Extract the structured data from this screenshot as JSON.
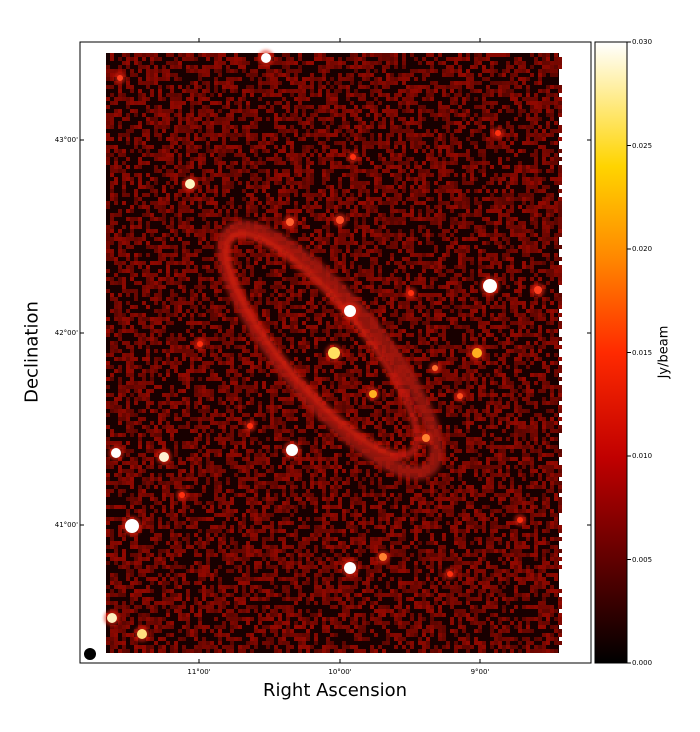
{
  "figure": {
    "xlabel": "Right Ascension",
    "ylabel": "Declination",
    "colorbar_label": "Jy/beam",
    "colormap": "hot",
    "x_ticks": [
      "11°00'",
      "10°00'",
      "9°00'"
    ],
    "y_ticks": [
      "43°00'",
      "42°00'",
      "41°00'"
    ],
    "colorbar_ticks": [
      "0.030",
      "0.025",
      "0.020",
      "0.015",
      "0.010",
      "0.005",
      "0.000"
    ],
    "colorbar_range": [
      0.0,
      0.03
    ],
    "beam_marker": "filled-circle",
    "subject": "spiral galaxy (M31-like) radio continuum map with point sources"
  },
  "colors": {
    "background": "#000000",
    "galaxy": "#d01810",
    "bright_source": "#ffffff",
    "frame": "#000000"
  }
}
